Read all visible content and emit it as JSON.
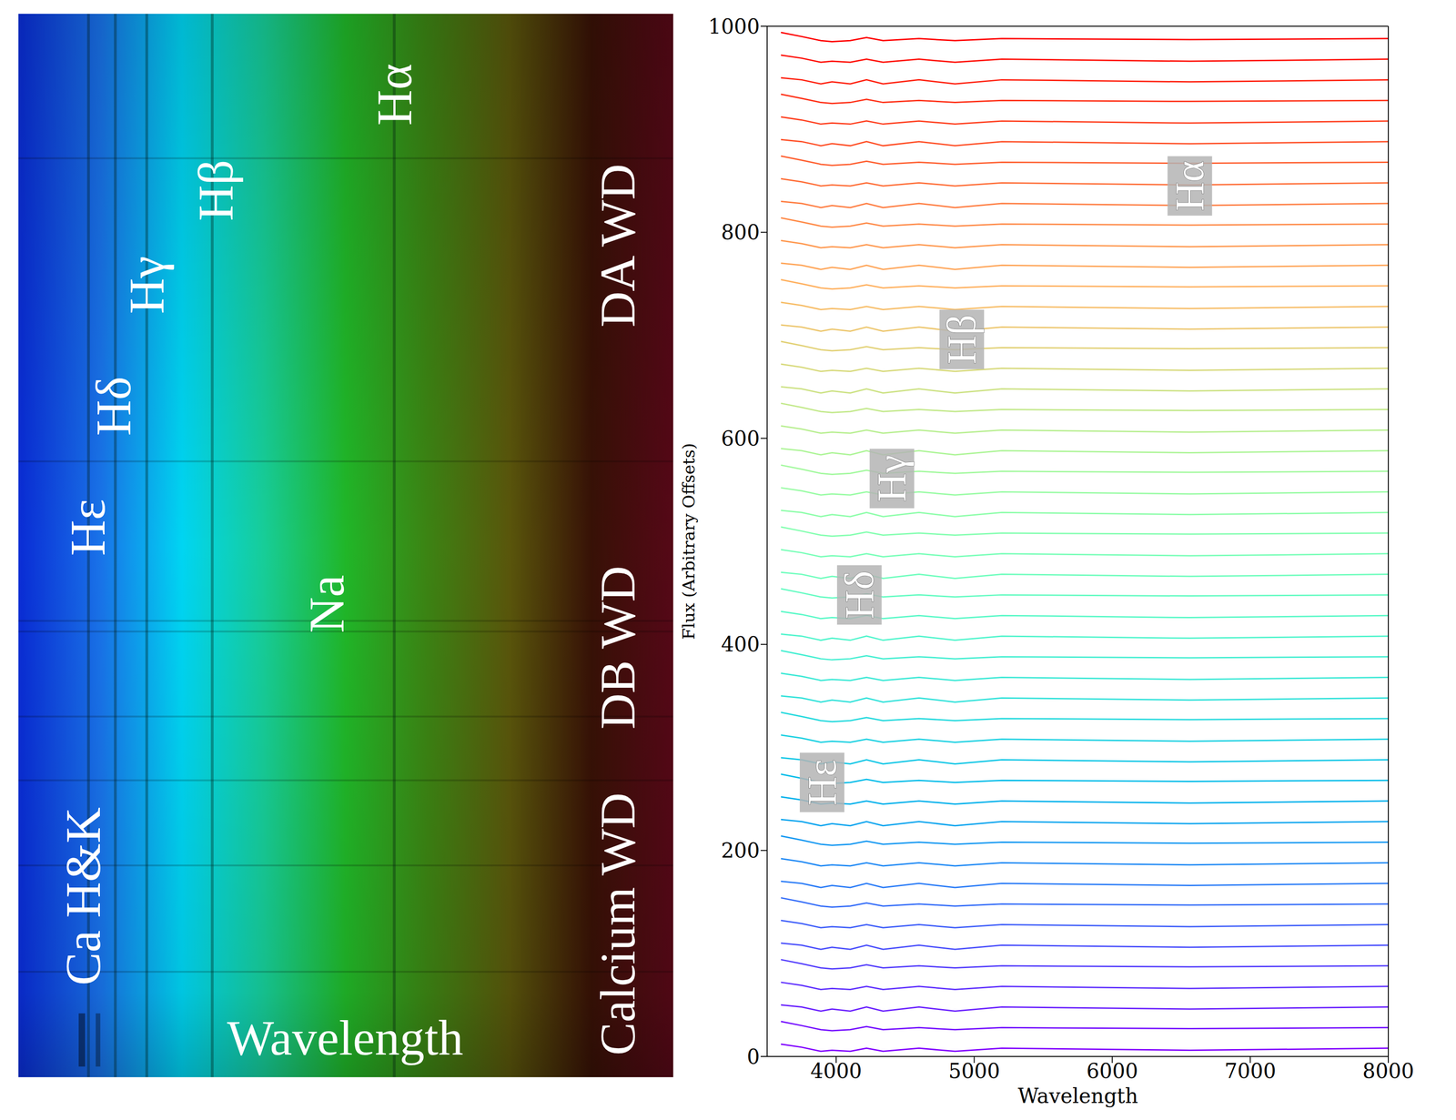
{
  "chart_data": [
    {
      "type": "image",
      "annotations": [
        "Ca H&K",
        "Hε",
        "Hδ",
        "Hγ",
        "Hβ",
        "Na",
        "Hα",
        "Wavelength",
        "DA WD",
        "DB WD",
        "Calcium WD"
      ],
      "colors": [
        "#0a2ee0",
        "#1a78f5",
        "#00e0ff",
        "#18d8a0",
        "#22c02a",
        "#3f8a14",
        "#5e5a0c",
        "#3a1206",
        "#5a0818"
      ]
    },
    {
      "type": "line",
      "xlabel": "Wavelength",
      "ylabel": "Flux (Arbitrary Offsets)",
      "xlim": [
        3500,
        8000
      ],
      "xticks": [
        4000,
        5000,
        6000,
        7000,
        8000
      ],
      "ylim": [
        0,
        1000
      ],
      "yticks": [
        0,
        200,
        400,
        600,
        800,
        1000
      ],
      "x": [
        3600,
        3750,
        3889,
        3970,
        4102,
        4220,
        4340,
        4600,
        4861,
        5200,
        6563,
        8000
      ],
      "annotations": [
        {
          "text": "Hε",
          "x": 3898,
          "y": 266
        },
        {
          "text": "Hδ",
          "x": 4168,
          "y": 448
        },
        {
          "text": "Hγ",
          "x": 4404,
          "y": 561
        },
        {
          "text": "Hβ",
          "x": 4910,
          "y": 696
        },
        {
          "text": "Hα",
          "x": 6562,
          "y": 845
        }
      ],
      "series": [
        {
          "color": "#8000ff",
          "values": [
            12,
            9,
            5,
            6,
            5,
            8,
            5,
            8,
            5,
            8,
            6,
            8
          ]
        },
        {
          "color": "#7510ff",
          "values": [
            34,
            30,
            26,
            25,
            26,
            29,
            26,
            28,
            26,
            28,
            27,
            28
          ]
        },
        {
          "color": "#6a21fe",
          "values": [
            50,
            48,
            44,
            46,
            44,
            48,
            44,
            48,
            44,
            48,
            46,
            48
          ]
        },
        {
          "color": "#6031fe",
          "values": [
            72,
            69,
            65,
            66,
            65,
            68,
            65,
            68,
            65,
            68,
            66,
            68
          ]
        },
        {
          "color": "#5640fd",
          "values": [
            94,
            90,
            86,
            85,
            86,
            89,
            86,
            88,
            86,
            88,
            87,
            88
          ]
        },
        {
          "color": "#4b50fc",
          "values": [
            110,
            108,
            104,
            106,
            104,
            108,
            104,
            108,
            104,
            108,
            106,
            108
          ]
        },
        {
          "color": "#4160fa",
          "values": [
            132,
            129,
            125,
            126,
            125,
            128,
            125,
            128,
            125,
            128,
            126,
            128
          ]
        },
        {
          "color": "#376ff9",
          "values": [
            154,
            150,
            146,
            145,
            146,
            149,
            146,
            148,
            146,
            148,
            147,
            148
          ]
        },
        {
          "color": "#2c7df7",
          "values": [
            170,
            168,
            164,
            166,
            164,
            168,
            164,
            168,
            164,
            168,
            166,
            168
          ]
        },
        {
          "color": "#228bf5",
          "values": [
            192,
            189,
            185,
            186,
            185,
            188,
            185,
            188,
            185,
            188,
            186,
            188
          ]
        },
        {
          "color": "#1799f2",
          "values": [
            214,
            210,
            206,
            205,
            206,
            209,
            206,
            208,
            206,
            208,
            207,
            208
          ]
        },
        {
          "color": "#0da5ef",
          "values": [
            230,
            228,
            224,
            226,
            224,
            228,
            224,
            228,
            224,
            228,
            226,
            228
          ]
        },
        {
          "color": "#03b1ec",
          "values": [
            252,
            249,
            245,
            246,
            245,
            248,
            245,
            248,
            245,
            248,
            246,
            248
          ]
        },
        {
          "color": "#08bde9",
          "values": [
            274,
            270,
            266,
            265,
            266,
            269,
            266,
            268,
            266,
            268,
            267,
            268
          ]
        },
        {
          "color": "#12c7e6",
          "values": [
            290,
            288,
            284,
            286,
            284,
            288,
            284,
            288,
            284,
            288,
            286,
            288
          ]
        },
        {
          "color": "#1dd1e2",
          "values": [
            312,
            309,
            305,
            306,
            305,
            308,
            305,
            308,
            305,
            308,
            306,
            308
          ]
        },
        {
          "color": "#27dade",
          "values": [
            334,
            330,
            326,
            325,
            326,
            329,
            326,
            328,
            326,
            328,
            327,
            328
          ]
        },
        {
          "color": "#31e2da",
          "values": [
            350,
            348,
            344,
            346,
            344,
            348,
            344,
            348,
            344,
            348,
            346,
            348
          ]
        },
        {
          "color": "#3ce9d6",
          "values": [
            372,
            369,
            365,
            366,
            365,
            368,
            365,
            368,
            365,
            368,
            366,
            368
          ]
        },
        {
          "color": "#46efd2",
          "values": [
            394,
            390,
            386,
            385,
            386,
            389,
            386,
            388,
            386,
            388,
            387,
            388
          ]
        },
        {
          "color": "#51f5cd",
          "values": [
            410,
            408,
            404,
            406,
            404,
            408,
            404,
            408,
            404,
            408,
            406,
            408
          ]
        },
        {
          "color": "#5bf9c8",
          "values": [
            432,
            429,
            425,
            426,
            425,
            428,
            425,
            428,
            425,
            428,
            426,
            428
          ]
        },
        {
          "color": "#66fcc3",
          "values": [
            454,
            450,
            446,
            445,
            446,
            449,
            446,
            448,
            446,
            448,
            447,
            448
          ]
        },
        {
          "color": "#70febe",
          "values": [
            470,
            468,
            464,
            466,
            464,
            468,
            464,
            468,
            464,
            468,
            466,
            468
          ]
        },
        {
          "color": "#7affb9",
          "values": [
            492,
            489,
            485,
            486,
            485,
            488,
            485,
            488,
            485,
            488,
            486,
            488
          ]
        },
        {
          "color": "#85ffb1",
          "values": [
            514,
            510,
            506,
            505,
            506,
            509,
            506,
            508,
            506,
            508,
            507,
            508
          ]
        },
        {
          "color": "#8ffeab",
          "values": [
            530,
            528,
            524,
            526,
            524,
            528,
            524,
            528,
            524,
            528,
            526,
            528
          ]
        },
        {
          "color": "#9afca5",
          "values": [
            552,
            549,
            545,
            546,
            545,
            548,
            545,
            548,
            545,
            548,
            546,
            548
          ]
        },
        {
          "color": "#a4f99f",
          "values": [
            574,
            570,
            566,
            565,
            566,
            569,
            566,
            568,
            566,
            568,
            567,
            568
          ]
        },
        {
          "color": "#aef598",
          "values": [
            590,
            588,
            584,
            586,
            584,
            588,
            584,
            588,
            584,
            588,
            586,
            588
          ]
        },
        {
          "color": "#b9ef92",
          "values": [
            612,
            609,
            605,
            606,
            605,
            608,
            605,
            608,
            605,
            608,
            606,
            608
          ]
        },
        {
          "color": "#c3e98b",
          "values": [
            634,
            630,
            626,
            625,
            626,
            629,
            626,
            628,
            626,
            628,
            627,
            628
          ]
        },
        {
          "color": "#cde284",
          "values": [
            650,
            648,
            644,
            646,
            644,
            648,
            644,
            648,
            644,
            648,
            646,
            648
          ]
        },
        {
          "color": "#d8da7d",
          "values": [
            672,
            669,
            665,
            666,
            665,
            668,
            665,
            668,
            665,
            668,
            666,
            668
          ]
        },
        {
          "color": "#e2d176",
          "values": [
            694,
            690,
            686,
            685,
            686,
            689,
            686,
            688,
            686,
            688,
            687,
            688
          ]
        },
        {
          "color": "#edc76f",
          "values": [
            710,
            708,
            704,
            706,
            704,
            708,
            704,
            708,
            704,
            708,
            706,
            708
          ]
        },
        {
          "color": "#f7bd67",
          "values": [
            732,
            729,
            725,
            726,
            725,
            728,
            725,
            728,
            725,
            728,
            726,
            728
          ]
        },
        {
          "color": "#ffb160",
          "values": [
            754,
            750,
            746,
            745,
            746,
            749,
            746,
            748,
            746,
            748,
            747,
            748
          ]
        },
        {
          "color": "#ffa558",
          "values": [
            770,
            768,
            764,
            766,
            764,
            768,
            764,
            768,
            764,
            768,
            766,
            768
          ]
        },
        {
          "color": "#ff9950",
          "values": [
            792,
            789,
            785,
            786,
            785,
            788,
            785,
            788,
            785,
            788,
            786,
            788
          ]
        },
        {
          "color": "#ff8b49",
          "values": [
            814,
            810,
            806,
            805,
            806,
            809,
            806,
            808,
            806,
            808,
            807,
            808
          ]
        },
        {
          "color": "#ff7d41",
          "values": [
            830,
            828,
            824,
            826,
            824,
            828,
            824,
            828,
            824,
            828,
            826,
            828
          ]
        },
        {
          "color": "#ff6f39",
          "values": [
            852,
            849,
            845,
            846,
            845,
            848,
            845,
            848,
            845,
            848,
            846,
            848
          ]
        },
        {
          "color": "#ff6031",
          "values": [
            874,
            870,
            866,
            865,
            866,
            869,
            866,
            868,
            866,
            868,
            867,
            868
          ]
        },
        {
          "color": "#ff5129",
          "values": [
            890,
            888,
            884,
            886,
            884,
            888,
            884,
            888,
            884,
            888,
            886,
            888
          ]
        },
        {
          "color": "#ff4121",
          "values": [
            912,
            909,
            905,
            906,
            905,
            908,
            905,
            908,
            905,
            908,
            906,
            908
          ]
        },
        {
          "color": "#ff3118",
          "values": [
            934,
            930,
            926,
            925,
            926,
            929,
            926,
            928,
            926,
            928,
            927,
            928
          ]
        },
        {
          "color": "#ff2110",
          "values": [
            950,
            948,
            944,
            946,
            944,
            948,
            944,
            948,
            944,
            948,
            946,
            948
          ]
        },
        {
          "color": "#ff1008",
          "values": [
            972,
            969,
            965,
            966,
            965,
            968,
            965,
            968,
            965,
            968,
            966,
            968
          ]
        },
        {
          "color": "#ff0000",
          "values": [
            994,
            990,
            986,
            985,
            986,
            989,
            986,
            988,
            986,
            988,
            987,
            988
          ]
        }
      ]
    }
  ]
}
